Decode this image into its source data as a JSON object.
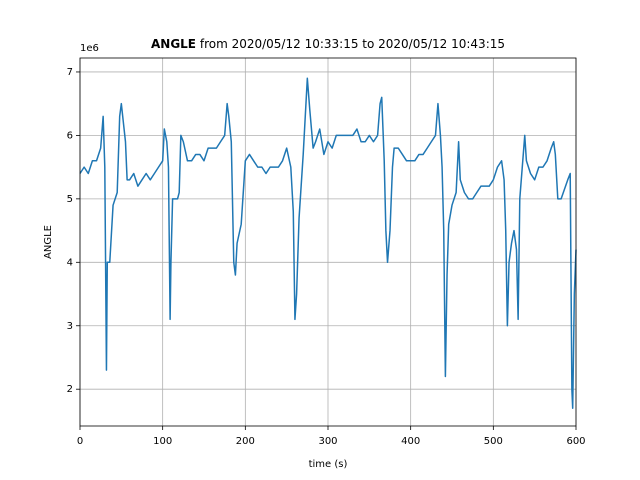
{
  "chart_data": {
    "type": "line",
    "title": {
      "bold": "ANGLE",
      "rest": "from 2020/05/12 10:33:15 to 2020/05/12 10:43:15"
    },
    "offset_text": "1e6",
    "x_label": "time (s)",
    "y_label": "ANGLE",
    "color": "#1f77b4",
    "grid": true,
    "xlim": [
      0,
      600
    ],
    "xticks": [
      0,
      100,
      200,
      300,
      400,
      500,
      600
    ],
    "ylim": [
      1.42,
      7.22
    ],
    "yticks": [
      2,
      3,
      4,
      5,
      6,
      7
    ],
    "x": [
      0,
      5,
      10,
      15,
      20,
      25,
      28,
      30,
      32,
      33,
      36,
      40,
      45,
      48,
      50,
      55,
      57,
      60,
      65,
      70,
      75,
      80,
      85,
      90,
      95,
      100,
      102,
      105,
      107,
      109,
      110,
      112,
      118,
      120,
      122,
      125,
      130,
      135,
      140,
      145,
      150,
      155,
      160,
      165,
      170,
      175,
      178,
      180,
      183,
      186,
      188,
      190,
      195,
      200,
      205,
      210,
      215,
      220,
      225,
      230,
      235,
      240,
      245,
      250,
      255,
      258,
      260,
      262,
      265,
      270,
      275,
      278,
      282,
      285,
      290,
      295,
      300,
      305,
      310,
      315,
      320,
      325,
      330,
      335,
      340,
      345,
      350,
      355,
      360,
      363,
      365,
      368,
      370,
      372,
      375,
      378,
      380,
      385,
      390,
      395,
      400,
      405,
      410,
      415,
      420,
      425,
      430,
      433,
      436,
      438,
      440,
      442,
      444,
      446,
      450,
      455,
      458,
      460,
      465,
      470,
      475,
      480,
      485,
      490,
      495,
      500,
      505,
      510,
      513,
      515,
      517,
      519,
      522,
      525,
      528,
      530,
      532,
      535,
      538,
      540,
      545,
      550,
      555,
      560,
      565,
      570,
      573,
      575,
      578,
      582,
      590,
      593,
      595,
      596,
      598,
      600
    ],
    "values": [
      5.4,
      5.5,
      5.4,
      5.6,
      5.6,
      5.8,
      6.3,
      5.5,
      2.3,
      4.0,
      4.0,
      4.9,
      5.1,
      6.3,
      6.5,
      5.9,
      5.3,
      5.3,
      5.4,
      5.2,
      5.3,
      5.4,
      5.3,
      5.4,
      5.5,
      5.6,
      6.1,
      5.9,
      5.5,
      3.1,
      4.0,
      5.0,
      5.0,
      5.1,
      6.0,
      5.9,
      5.6,
      5.6,
      5.7,
      5.7,
      5.6,
      5.8,
      5.8,
      5.8,
      5.9,
      6.0,
      6.5,
      6.3,
      5.9,
      4.0,
      3.8,
      4.3,
      4.6,
      5.6,
      5.7,
      5.6,
      5.5,
      5.5,
      5.4,
      5.5,
      5.5,
      5.5,
      5.6,
      5.8,
      5.5,
      4.8,
      3.1,
      3.5,
      4.7,
      5.7,
      6.9,
      6.4,
      5.8,
      5.9,
      6.1,
      5.7,
      5.9,
      5.8,
      6.0,
      6.0,
      6.0,
      6.0,
      6.0,
      6.1,
      5.9,
      5.9,
      6.0,
      5.9,
      6.0,
      6.5,
      6.6,
      5.6,
      4.5,
      4.0,
      4.5,
      5.5,
      5.8,
      5.8,
      5.7,
      5.6,
      5.6,
      5.6,
      5.7,
      5.7,
      5.8,
      5.9,
      6.0,
      6.5,
      6.0,
      5.5,
      4.5,
      2.2,
      3.8,
      4.6,
      4.9,
      5.1,
      5.9,
      5.3,
      5.1,
      5.0,
      5.0,
      5.1,
      5.2,
      5.2,
      5.2,
      5.3,
      5.5,
      5.6,
      5.3,
      4.5,
      3.0,
      4.0,
      4.3,
      4.5,
      4.2,
      3.1,
      5.0,
      5.5,
      6.0,
      5.6,
      5.4,
      5.3,
      5.5,
      5.5,
      5.6,
      5.8,
      5.9,
      5.7,
      5.0,
      5.0,
      5.3,
      5.4,
      2.0,
      1.7,
      3.5,
      4.2
    ]
  }
}
